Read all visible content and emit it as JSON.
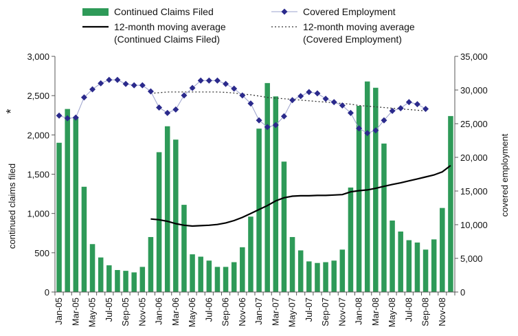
{
  "chart_data": {
    "type": "bar-line",
    "categories": [
      "Jan-05",
      "Feb-05",
      "Mar-05",
      "Apr-05",
      "May-05",
      "Jun-05",
      "Jul-05",
      "Aug-05",
      "Sep-05",
      "Oct-05",
      "Nov-05",
      "Dec-05",
      "Jan-06",
      "Feb-06",
      "Mar-06",
      "Apr-06",
      "May-06",
      "Jun-06",
      "Jul-06",
      "Aug-06",
      "Sep-06",
      "Oct-06",
      "Nov-06",
      "Dec-06",
      "Jan-07",
      "Feb-07",
      "Mar-07",
      "Apr-07",
      "May-07",
      "Jun-07",
      "Jul-07",
      "Aug-07",
      "Sep-07",
      "Oct-07",
      "Nov-07",
      "Dec-07",
      "Jan-08",
      "Feb-08",
      "Mar-08",
      "Apr-08",
      "May-08",
      "Jun-08",
      "Jul-08",
      "Aug-08",
      "Sep-08",
      "Oct-08",
      "Nov-08",
      "Dec-08"
    ],
    "tick_labels": [
      "Jan-05",
      "Mar-05",
      "May-05",
      "Jul-05",
      "Sep-05",
      "Nov-05",
      "Jan-06",
      "Mar-06",
      "May-06",
      "Jul-06",
      "Sep-06",
      "Nov-06",
      "Jan-07",
      "Mar-07",
      "May-07",
      "Jul-07",
      "Sep-07",
      "Nov-07",
      "Jan-08",
      "Mar-08",
      "May-08",
      "Jul-08",
      "Sep-08",
      "Nov-08"
    ],
    "y_left": {
      "label": "continued claims filed",
      "marker": "*",
      "ylim": [
        0,
        3000
      ],
      "ticks": [
        "0",
        "500",
        "1,000",
        "1,500",
        "2,000",
        "2,500",
        "3,000"
      ]
    },
    "y_right": {
      "label": "covered employment",
      "ylim": [
        0,
        35000
      ],
      "ticks": [
        "0",
        "5,000",
        "10,000",
        "15,000",
        "20,000",
        "25,000",
        "30,000",
        "35,000"
      ]
    },
    "series": [
      {
        "name": "Continued Claims Filed",
        "kind": "bar",
        "axis": "left",
        "color": "#2e9a58",
        "values": [
          1900,
          2330,
          2230,
          1340,
          610,
          440,
          340,
          280,
          270,
          250,
          320,
          700,
          1780,
          2110,
          1940,
          1110,
          480,
          450,
          400,
          320,
          320,
          380,
          570,
          960,
          2080,
          2660,
          2490,
          1660,
          700,
          530,
          390,
          370,
          380,
          400,
          540,
          1330,
          2370,
          2680,
          2600,
          1890,
          910,
          770,
          660,
          630,
          540,
          670,
          1070,
          2240
        ]
      },
      {
        "name": "Covered Employment",
        "kind": "line-marker",
        "axis": "right",
        "color": "#2b2a8c",
        "values": [
          26200,
          25800,
          25900,
          28900,
          30100,
          31000,
          31500,
          31500,
          30900,
          30700,
          30700,
          29800,
          27400,
          26600,
          27100,
          29200,
          30300,
          31400,
          31400,
          31400,
          30900,
          30200,
          29200,
          28000,
          25500,
          24500,
          24800,
          26100,
          28500,
          29100,
          29700,
          29500,
          28700,
          28200,
          27700,
          26600,
          24300,
          23600,
          24000,
          25500,
          26900,
          27300,
          28200,
          27900,
          27200,
          null,
          null,
          null
        ]
      },
      {
        "name": "12-month moving average\n(Continued Claims Filed)",
        "kind": "line",
        "axis": "left",
        "color": "#000000",
        "values": [
          null,
          null,
          null,
          null,
          null,
          null,
          null,
          null,
          null,
          null,
          null,
          930,
          920,
          900,
          870,
          850,
          840,
          845,
          850,
          860,
          880,
          910,
          950,
          1000,
          1050,
          1100,
          1160,
          1200,
          1220,
          1225,
          1225,
          1230,
          1230,
          1235,
          1240,
          1275,
          1290,
          1300,
          1320,
          1345,
          1370,
          1390,
          1415,
          1440,
          1465,
          1490,
          1530,
          1610
        ]
      },
      {
        "name": "12-month moving average\n(Covered Employment)",
        "kind": "dashed-line",
        "axis": "right",
        "color": "#333333",
        "values": [
          null,
          null,
          null,
          null,
          null,
          null,
          null,
          null,
          null,
          null,
          null,
          29500,
          29600,
          29700,
          29700,
          29700,
          29700,
          29700,
          29700,
          29700,
          29650,
          29550,
          29400,
          29300,
          29100,
          28900,
          28800,
          28700,
          28600,
          28500,
          28400,
          28300,
          28200,
          28100,
          28000,
          27900,
          27700,
          27600,
          27500,
          27400,
          27300,
          27200,
          27100,
          27000,
          26900,
          null,
          null,
          null
        ]
      }
    ],
    "legend": {
      "placement": "top",
      "items": [
        {
          "label": "Continued Claims Filed",
          "symbol": "bar"
        },
        {
          "label": "Covered Employment",
          "symbol": "diamond-line"
        },
        {
          "label": "12-month moving average",
          "sub": "(Continued Claims Filed)",
          "symbol": "solid-line"
        },
        {
          "label": "12-month moving average",
          "sub": "(Covered Employment)",
          "symbol": "dashed-line"
        }
      ]
    },
    "grid": false
  }
}
